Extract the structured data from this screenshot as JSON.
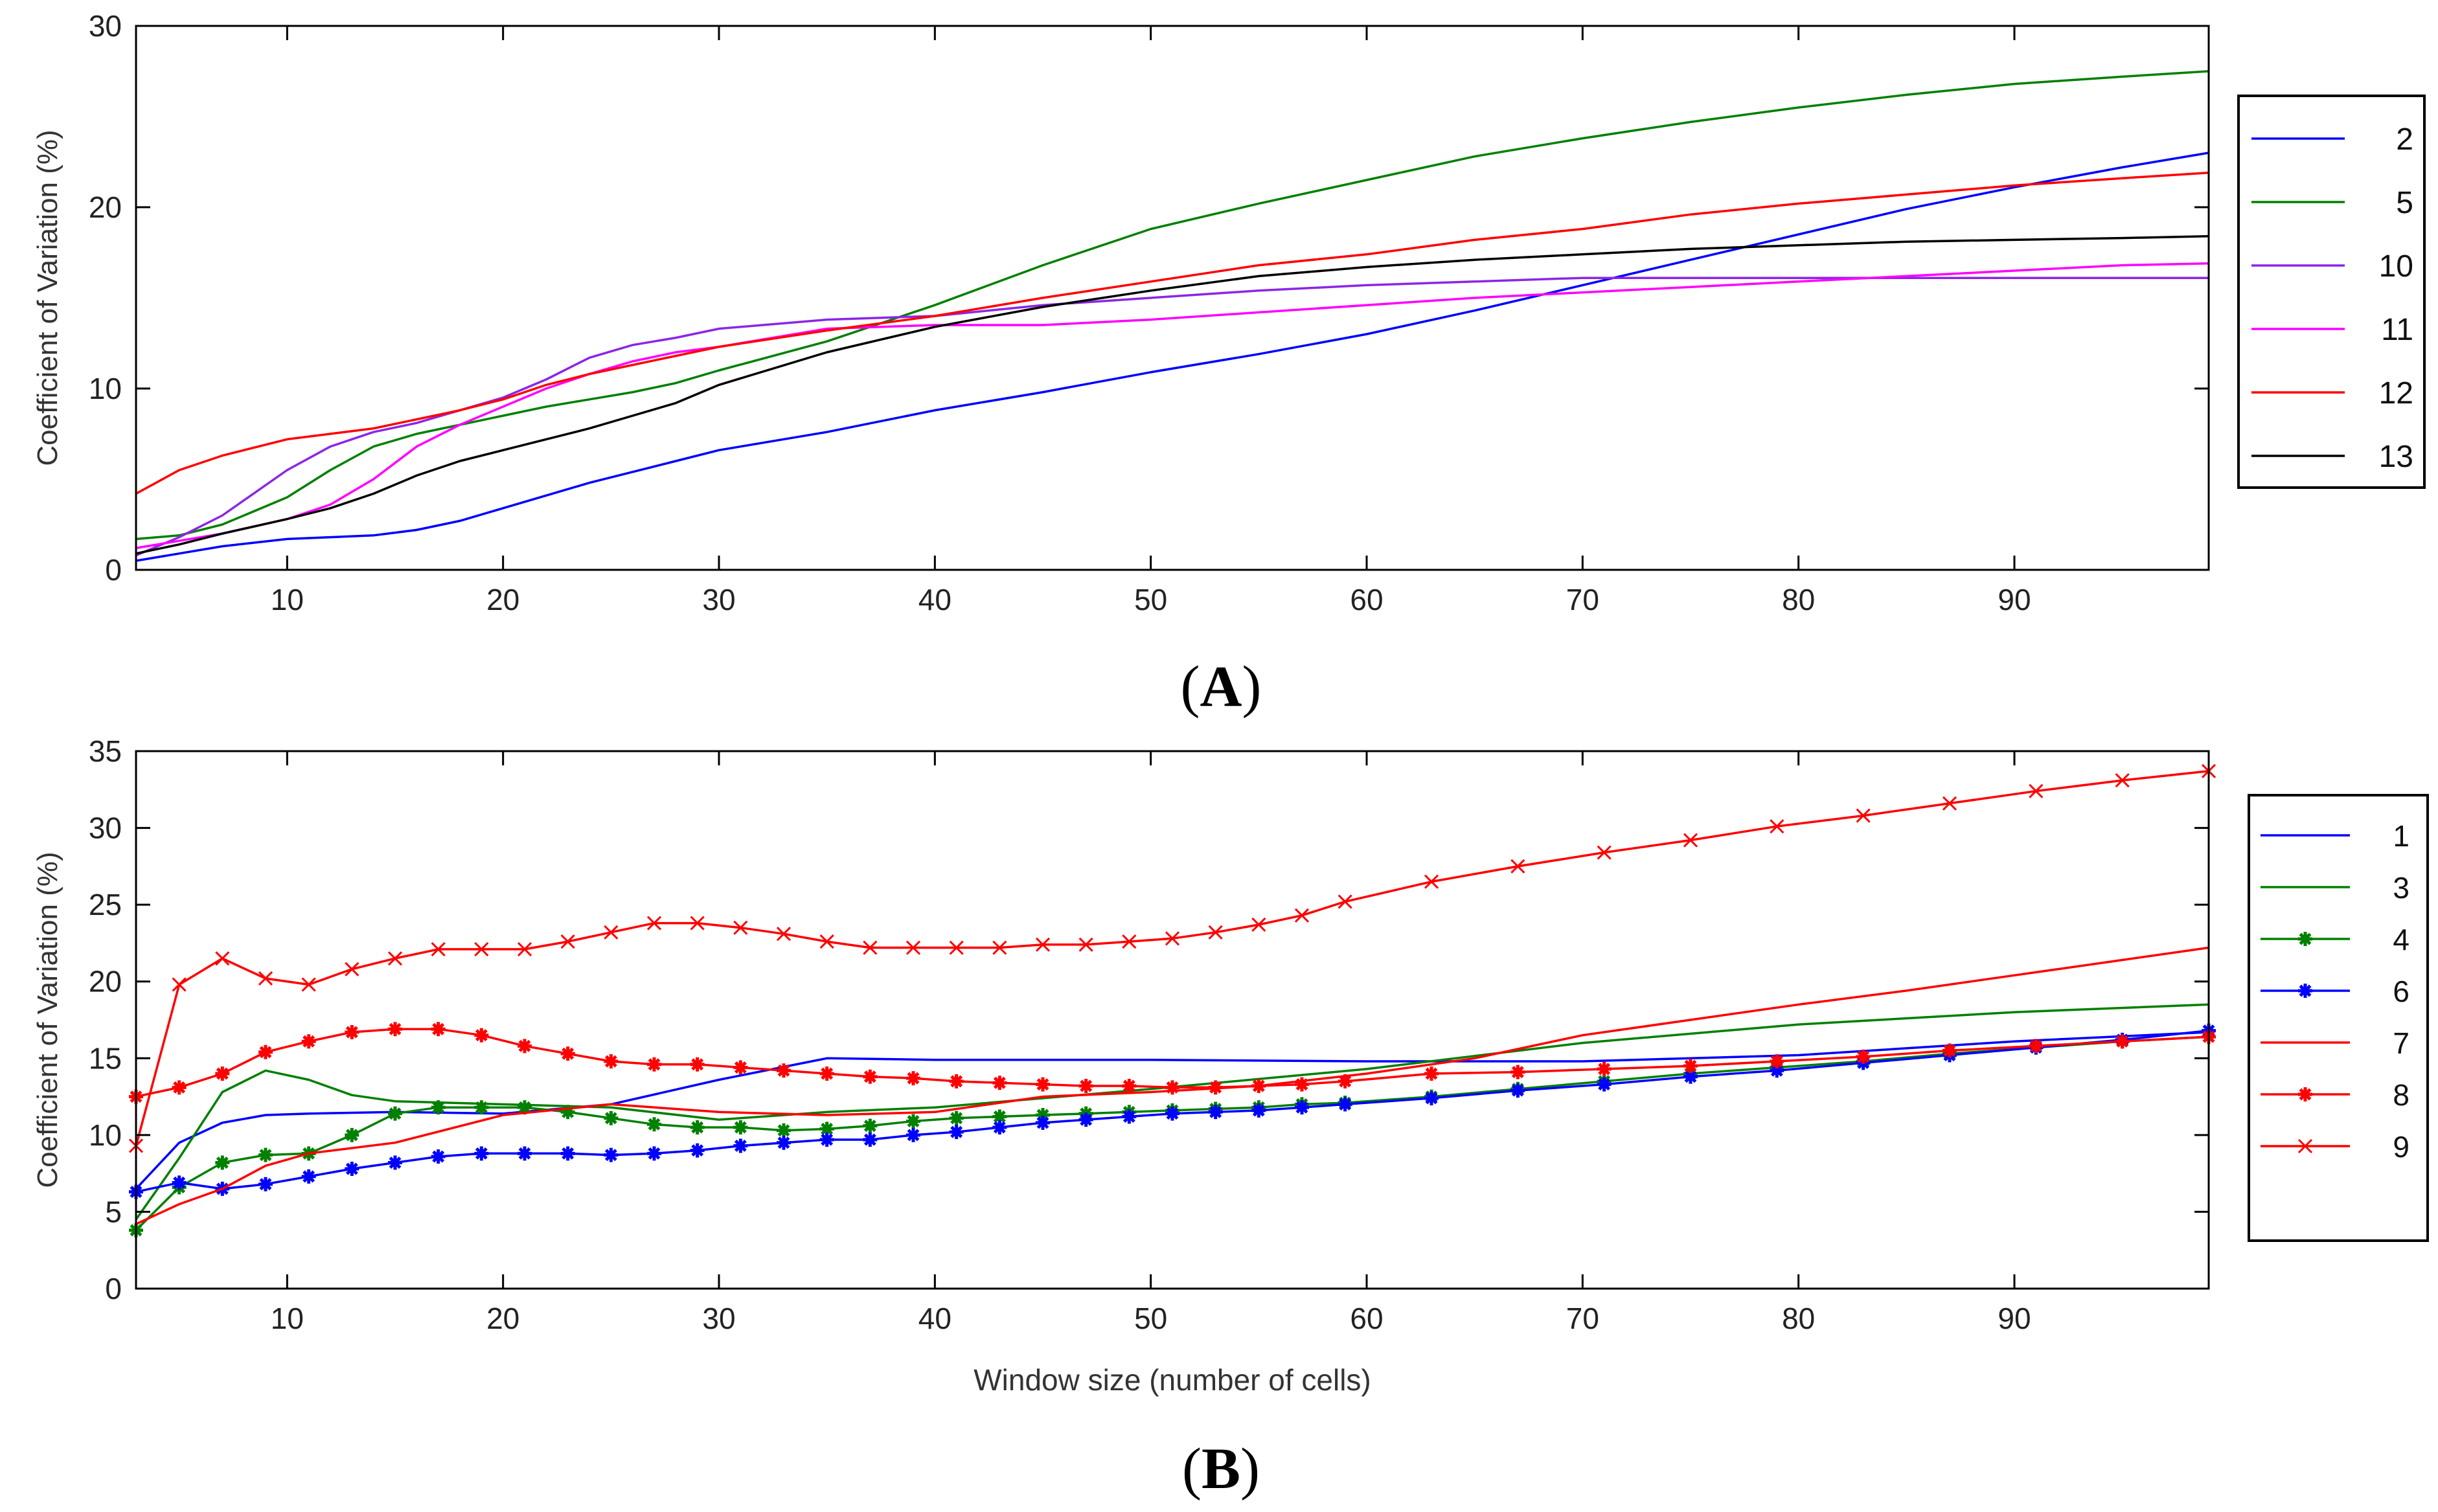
{
  "colors": {
    "blue": "#0000ff",
    "green": "#008000",
    "violet": "#8b26e6",
    "magenta": "#ff00ff",
    "red": "#ff0000",
    "black": "#000000"
  },
  "chart_data": [
    {
      "panel": "A",
      "panel_label": {
        "open": "(",
        "letter": "A",
        "close": ")"
      },
      "type": "line",
      "title": "",
      "xlabel": "",
      "ylabel": "Coefficient of Variation (%)",
      "xlim": [
        3,
        99
      ],
      "ylim": [
        0,
        30
      ],
      "xticks": [
        10,
        20,
        30,
        40,
        50,
        60,
        70,
        80,
        90
      ],
      "yticks": [
        0,
        10,
        20,
        30
      ],
      "grid": false,
      "legend_position": "right",
      "series": [
        {
          "name": "2",
          "color": "#0000ff",
          "marker": "none",
          "x": [
            3,
            5,
            7,
            10,
            12,
            14,
            16,
            18,
            20,
            22,
            24,
            26,
            28,
            30,
            35,
            40,
            45,
            50,
            55,
            60,
            65,
            70,
            75,
            80,
            85,
            90,
            95,
            99
          ],
          "y": [
            0.5,
            0.9,
            1.3,
            1.7,
            1.8,
            1.9,
            2.2,
            2.7,
            3.4,
            4.1,
            4.8,
            5.4,
            6.0,
            6.6,
            7.6,
            8.8,
            9.8,
            10.9,
            11.9,
            13.0,
            14.3,
            15.7,
            17.1,
            18.5,
            19.9,
            21.1,
            22.2,
            23.0
          ]
        },
        {
          "name": "5",
          "color": "#008000",
          "marker": "none",
          "x": [
            3,
            5,
            7,
            10,
            12,
            14,
            16,
            18,
            20,
            22,
            24,
            26,
            28,
            30,
            35,
            40,
            45,
            50,
            55,
            60,
            65,
            70,
            75,
            80,
            85,
            90,
            95,
            99
          ],
          "y": [
            1.7,
            1.9,
            2.5,
            4.0,
            5.5,
            6.8,
            7.5,
            8.0,
            8.5,
            9.0,
            9.4,
            9.8,
            10.3,
            11.0,
            12.6,
            14.6,
            16.8,
            18.8,
            20.2,
            21.5,
            22.8,
            23.8,
            24.7,
            25.5,
            26.2,
            26.8,
            27.2,
            27.5
          ]
        },
        {
          "name": "10",
          "color": "#8b26e6",
          "marker": "none",
          "x": [
            3,
            5,
            7,
            10,
            12,
            14,
            16,
            18,
            20,
            22,
            24,
            26,
            28,
            30,
            35,
            40,
            45,
            50,
            55,
            60,
            65,
            70,
            75,
            80,
            85,
            90,
            95,
            99
          ],
          "y": [
            0.8,
            1.8,
            3.0,
            5.5,
            6.8,
            7.6,
            8.1,
            8.8,
            9.5,
            10.5,
            11.7,
            12.4,
            12.8,
            13.3,
            13.8,
            14.0,
            14.6,
            15.0,
            15.4,
            15.7,
            15.9,
            16.1,
            16.1,
            16.1,
            16.1,
            16.1,
            16.1,
            16.1
          ]
        },
        {
          "name": "11",
          "color": "#ff00ff",
          "marker": "none",
          "x": [
            3,
            5,
            7,
            10,
            12,
            14,
            16,
            18,
            20,
            22,
            24,
            26,
            28,
            30,
            35,
            40,
            45,
            50,
            55,
            60,
            65,
            70,
            75,
            80,
            85,
            90,
            95,
            99
          ],
          "y": [
            1.2,
            1.6,
            2.0,
            2.8,
            3.6,
            5.0,
            6.8,
            8.0,
            9.0,
            10.0,
            10.8,
            11.5,
            12.0,
            12.3,
            13.3,
            13.5,
            13.5,
            13.8,
            14.2,
            14.6,
            15.0,
            15.3,
            15.6,
            15.9,
            16.2,
            16.5,
            16.8,
            16.9
          ]
        },
        {
          "name": "12",
          "color": "#ff0000",
          "marker": "none",
          "x": [
            3,
            5,
            7,
            10,
            12,
            14,
            16,
            18,
            20,
            22,
            24,
            26,
            28,
            30,
            35,
            40,
            45,
            50,
            55,
            60,
            65,
            70,
            75,
            80,
            85,
            90,
            95,
            99
          ],
          "y": [
            4.2,
            5.5,
            6.3,
            7.2,
            7.5,
            7.8,
            8.3,
            8.8,
            9.4,
            10.2,
            10.8,
            11.3,
            11.8,
            12.3,
            13.2,
            14.0,
            15.0,
            15.9,
            16.8,
            17.4,
            18.2,
            18.8,
            19.6,
            20.2,
            20.7,
            21.2,
            21.6,
            21.9
          ]
        },
        {
          "name": "13",
          "color": "#000000",
          "marker": "none",
          "x": [
            3,
            5,
            7,
            10,
            12,
            14,
            16,
            18,
            20,
            22,
            24,
            26,
            28,
            30,
            35,
            40,
            45,
            50,
            55,
            60,
            65,
            70,
            75,
            80,
            85,
            90,
            95,
            99
          ],
          "y": [
            0.9,
            1.4,
            2.0,
            2.8,
            3.4,
            4.2,
            5.2,
            6.0,
            6.6,
            7.2,
            7.8,
            8.5,
            9.2,
            10.2,
            12.0,
            13.4,
            14.5,
            15.4,
            16.2,
            16.7,
            17.1,
            17.4,
            17.7,
            17.9,
            18.1,
            18.2,
            18.3,
            18.4
          ]
        }
      ]
    },
    {
      "panel": "B",
      "panel_label": {
        "open": "(",
        "letter": "B",
        "close": ")"
      },
      "type": "line",
      "title": "",
      "xlabel": "Window size (number of cells)",
      "ylabel": "Coefficient of Variation (%)",
      "xlim": [
        3,
        99
      ],
      "ylim": [
        0,
        35
      ],
      "xticks": [
        10,
        20,
        30,
        40,
        50,
        60,
        70,
        80,
        90
      ],
      "yticks": [
        0,
        5,
        10,
        15,
        20,
        25,
        30,
        35
      ],
      "grid": false,
      "legend_position": "right",
      "series": [
        {
          "name": "1",
          "color": "#0000ff",
          "marker": "none",
          "x": [
            3,
            5,
            7,
            9,
            11,
            15,
            20,
            25,
            30,
            35,
            40,
            50,
            60,
            70,
            80,
            90,
            99
          ],
          "y": [
            6.5,
            9.5,
            10.8,
            11.3,
            11.4,
            11.5,
            11.4,
            12.0,
            13.6,
            15.0,
            14.9,
            14.9,
            14.8,
            14.8,
            15.2,
            16.1,
            16.7
          ]
        },
        {
          "name": "3",
          "color": "#008000",
          "marker": "none",
          "x": [
            3,
            5,
            7,
            9,
            11,
            13,
            15,
            20,
            25,
            30,
            35,
            40,
            50,
            60,
            70,
            80,
            90,
            99
          ],
          "y": [
            4.5,
            8.5,
            12.8,
            14.2,
            13.6,
            12.6,
            12.2,
            12.0,
            11.8,
            11.0,
            11.5,
            11.8,
            13.0,
            14.3,
            16.0,
            17.2,
            18.0,
            18.5
          ]
        },
        {
          "name": "4",
          "color": "#008000",
          "marker": "star",
          "x": [
            3,
            5,
            7,
            9,
            11,
            13,
            15,
            17,
            19,
            21,
            23,
            25,
            27,
            29,
            31,
            33,
            35,
            37,
            39,
            41,
            43,
            45,
            47,
            49,
            51,
            53,
            55,
            57,
            59,
            63,
            67,
            71,
            75,
            79,
            83,
            87,
            91,
            95,
            99
          ],
          "y": [
            3.8,
            6.6,
            8.2,
            8.7,
            8.8,
            10.0,
            11.4,
            11.8,
            11.8,
            11.8,
            11.5,
            11.1,
            10.7,
            10.5,
            10.5,
            10.3,
            10.4,
            10.6,
            10.9,
            11.1,
            11.2,
            11.3,
            11.4,
            11.5,
            11.6,
            11.7,
            11.8,
            12.0,
            12.1,
            12.5,
            13.0,
            13.5,
            14.0,
            14.4,
            14.8,
            15.3,
            15.7,
            16.1,
            16.4
          ]
        },
        {
          "name": "6",
          "color": "#0000ff",
          "marker": "star",
          "x": [
            3,
            5,
            7,
            9,
            11,
            13,
            15,
            17,
            19,
            21,
            23,
            25,
            27,
            29,
            31,
            33,
            35,
            37,
            39,
            41,
            43,
            45,
            47,
            49,
            51,
            53,
            55,
            57,
            59,
            63,
            67,
            71,
            75,
            79,
            83,
            87,
            91,
            95,
            99
          ],
          "y": [
            6.3,
            6.9,
            6.5,
            6.8,
            7.3,
            7.8,
            8.2,
            8.6,
            8.8,
            8.8,
            8.8,
            8.7,
            8.8,
            9.0,
            9.3,
            9.5,
            9.7,
            9.7,
            10.0,
            10.2,
            10.5,
            10.8,
            11.0,
            11.2,
            11.4,
            11.5,
            11.6,
            11.8,
            12.0,
            12.4,
            12.9,
            13.3,
            13.8,
            14.2,
            14.7,
            15.2,
            15.7,
            16.2,
            16.8
          ]
        },
        {
          "name": "7",
          "color": "#ff0000",
          "marker": "none",
          "x": [
            3,
            5,
            7,
            9,
            11,
            15,
            20,
            25,
            30,
            35,
            40,
            45,
            50,
            55,
            60,
            65,
            70,
            75,
            80,
            85,
            90,
            95,
            99
          ],
          "y": [
            4.2,
            5.5,
            6.5,
            8.0,
            8.8,
            9.5,
            11.3,
            12.0,
            11.5,
            11.3,
            11.5,
            12.5,
            12.8,
            13.2,
            14.0,
            15.0,
            16.5,
            17.5,
            18.5,
            19.4,
            20.4,
            21.4,
            22.2
          ]
        },
        {
          "name": "8",
          "color": "#ff0000",
          "marker": "star",
          "x": [
            3,
            5,
            7,
            9,
            11,
            13,
            15,
            17,
            19,
            21,
            23,
            25,
            27,
            29,
            31,
            33,
            35,
            37,
            39,
            41,
            43,
            45,
            47,
            49,
            51,
            53,
            55,
            57,
            59,
            63,
            67,
            71,
            75,
            79,
            83,
            87,
            91,
            95,
            99
          ],
          "y": [
            12.5,
            13.1,
            14.0,
            15.4,
            16.1,
            16.7,
            16.9,
            16.9,
            16.5,
            15.8,
            15.3,
            14.8,
            14.6,
            14.6,
            14.4,
            14.2,
            14.0,
            13.8,
            13.7,
            13.5,
            13.4,
            13.3,
            13.2,
            13.2,
            13.1,
            13.1,
            13.2,
            13.3,
            13.5,
            14.0,
            14.1,
            14.3,
            14.5,
            14.8,
            15.1,
            15.5,
            15.8,
            16.1,
            16.4
          ]
        },
        {
          "name": "9",
          "color": "#ff0000",
          "marker": "x",
          "x": [
            3,
            5,
            7,
            9,
            11,
            13,
            15,
            17,
            19,
            21,
            23,
            25,
            27,
            29,
            31,
            33,
            35,
            37,
            39,
            41,
            43,
            45,
            47,
            49,
            51,
            53,
            55,
            57,
            59,
            63,
            67,
            71,
            75,
            79,
            83,
            87,
            91,
            95,
            99
          ],
          "y": [
            9.3,
            19.8,
            21.5,
            20.2,
            19.8,
            20.8,
            21.5,
            22.1,
            22.1,
            22.1,
            22.6,
            23.2,
            23.8,
            23.8,
            23.5,
            23.1,
            22.6,
            22.2,
            22.2,
            22.2,
            22.2,
            22.4,
            22.4,
            22.6,
            22.8,
            23.2,
            23.7,
            24.3,
            25.2,
            26.5,
            27.5,
            28.4,
            29.2,
            30.1,
            30.8,
            31.6,
            32.4,
            33.1,
            33.7
          ]
        }
      ]
    }
  ]
}
